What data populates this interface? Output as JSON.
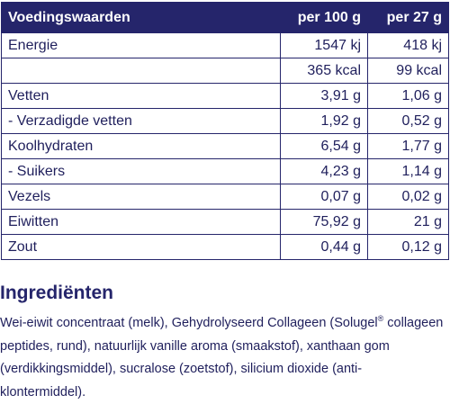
{
  "table": {
    "headers": [
      "Voedingswaarden",
      "per 100 g",
      "per 27 g"
    ],
    "rows": [
      [
        "Energie",
        "1547 kj",
        "418 kj"
      ],
      [
        "",
        "365 kcal",
        "99 kcal"
      ],
      [
        "Vetten",
        "3,91 g",
        "1,06 g"
      ],
      [
        "- Verzadigde vetten",
        "1,92 g",
        "0,52 g"
      ],
      [
        "Koolhydraten",
        "6,54 g",
        "1,77 g"
      ],
      [
        "- Suikers",
        "4,23 g",
        "1,14 g"
      ],
      [
        "Vezels",
        "0,07 g",
        "0,02 g"
      ],
      [
        "Eiwitten",
        "75,92 g",
        "21 g"
      ],
      [
        "Zout",
        "0,44 g",
        "0,12 g"
      ]
    ]
  },
  "ingredients": {
    "title": "Ingrediënten",
    "text_before": "Wei-eiwit concentraat (melk), Gehydrolyseerd Collageen (Solugel",
    "registered_mark": "®",
    "text_after": " collageen peptides, rund), natuurlijk vanille aroma (smaakstof), xanthaan gom (verdikkingsmiddel), sucralose (zoetstof), silicium dioxide (anti-klontermiddel)."
  },
  "colors": {
    "header_bg": "#25256b",
    "text": "#1f1f5c"
  }
}
